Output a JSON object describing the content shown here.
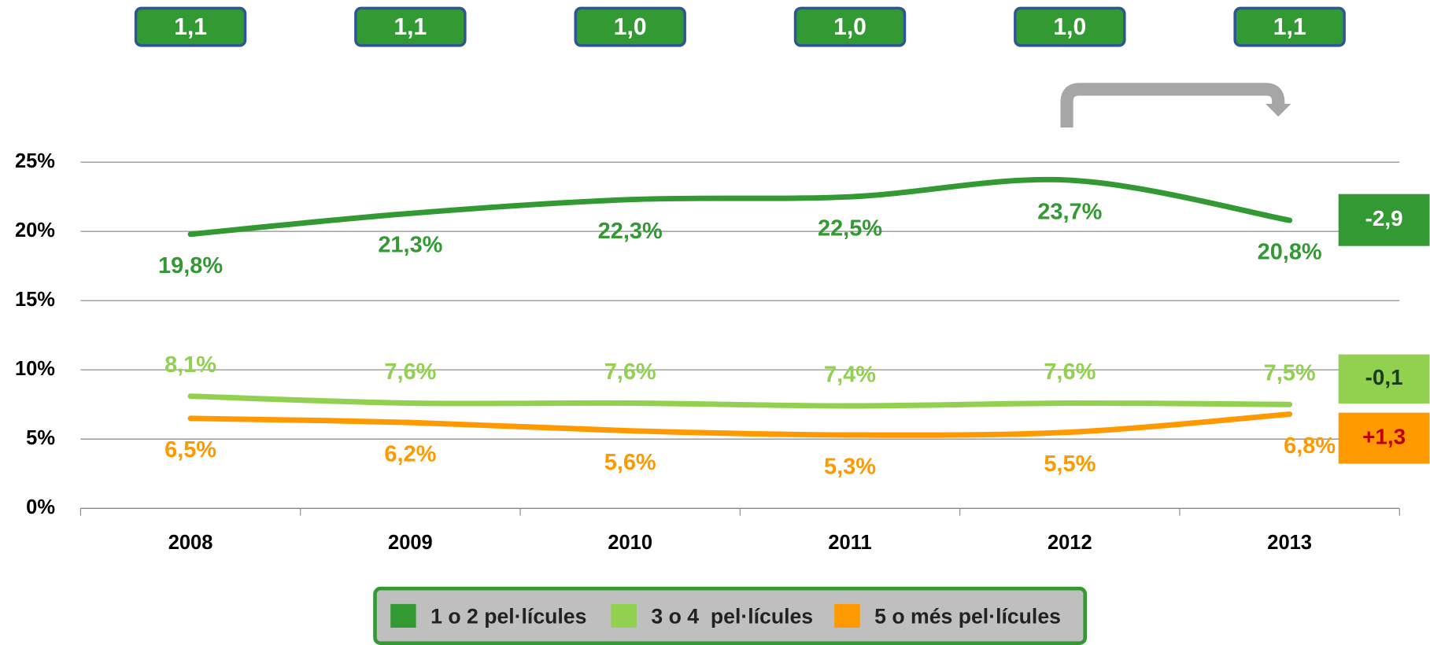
{
  "chart_data": {
    "type": "line",
    "categories": [
      "2008",
      "2009",
      "2010",
      "2011",
      "2012",
      "2013"
    ],
    "top_values": [
      1.1,
      1.1,
      1.0,
      1.0,
      1.0,
      1.1
    ],
    "top_value_labels": [
      "1,1",
      "1,1",
      "1,0",
      "1,0",
      "1,0",
      "1,1"
    ],
    "series": [
      {
        "name": "1 o 2 pel·lícules",
        "color": "#339933",
        "values": [
          19.8,
          21.3,
          22.3,
          22.5,
          23.7,
          20.8
        ],
        "value_labels": [
          "19,8%",
          "21,3%",
          "22,3%",
          "22,5%",
          "23,7%",
          "20,8%"
        ],
        "change": -2.9,
        "change_label": "-2,9"
      },
      {
        "name": "3 o 4  pel·lícules",
        "color": "#92d050",
        "values": [
          8.1,
          7.6,
          7.6,
          7.4,
          7.6,
          7.5
        ],
        "value_labels": [
          "8,1%",
          "7,6%",
          "7,6%",
          "7,4%",
          "7,6%",
          "7,5%"
        ],
        "change": -0.1,
        "change_label": "-0,1"
      },
      {
        "name": "5 o més pel·lícules",
        "color": "#ff9900",
        "values": [
          6.5,
          6.2,
          5.6,
          5.3,
          5.5,
          6.8
        ],
        "value_labels": [
          "6,5%",
          "6,2%",
          "5,6%",
          "5,3%",
          "5,5%",
          "6,8%"
        ],
        "change": 1.3,
        "change_label": "+1,3"
      }
    ],
    "ylim": [
      0,
      25
    ],
    "yticks": [
      {
        "value": 0,
        "label": "0%"
      },
      {
        "value": 5,
        "label": "5%"
      },
      {
        "value": 10,
        "label": "10%"
      },
      {
        "value": 15,
        "label": "15%"
      },
      {
        "value": 20,
        "label": "20%"
      },
      {
        "value": 25,
        "label": "25%"
      }
    ],
    "grid": true
  }
}
